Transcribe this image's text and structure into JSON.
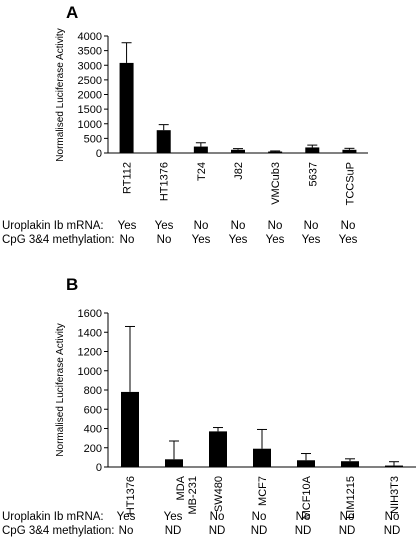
{
  "chart_data": [
    {
      "panel": "A",
      "type": "bar",
      "ylabel": "Normalised Luciferase Activity",
      "ylim": [
        0,
        4000
      ],
      "yticks": [
        0,
        500,
        1000,
        1500,
        2000,
        2500,
        3000,
        3500,
        4000
      ],
      "categories": [
        "RT112",
        "HT1376",
        "T24",
        "J82",
        "VMCub3",
        "5637",
        "TCCSuP"
      ],
      "values": [
        3080,
        780,
        220,
        110,
        50,
        190,
        110
      ],
      "errors": [
        690,
        190,
        130,
        40,
        20,
        80,
        50
      ],
      "grid": false,
      "rows": [
        {
          "label": "Uroplakin Ib mRNA:",
          "values": [
            "Yes",
            "Yes",
            "No",
            "No",
            "No",
            "No",
            "No"
          ]
        },
        {
          "label": "CpG 3&4 methylation:",
          "values": [
            "No",
            "No",
            "Yes",
            "Yes",
            "Yes",
            "Yes",
            "Yes"
          ]
        }
      ]
    },
    {
      "panel": "B",
      "type": "bar",
      "ylabel": "Normalised Luciferase Activity",
      "ylim": [
        0,
        1600
      ],
      "yticks": [
        0,
        200,
        400,
        600,
        800,
        1000,
        1200,
        1400,
        1600
      ],
      "categories": [
        "HT1376",
        "MDA\nMB-231",
        "SW480",
        "MCF7",
        "MCF10A",
        "LIM1215",
        "NIH3T3"
      ],
      "values": [
        780,
        80,
        370,
        190,
        70,
        60,
        15
      ],
      "errors": [
        680,
        190,
        40,
        200,
        70,
        25,
        40
      ],
      "grid": false,
      "rows": [
        {
          "label": "Uroplakin Ib mRNA:",
          "values": [
            "Yes",
            "Yes",
            "No",
            "No",
            "No",
            "No",
            "No"
          ]
        },
        {
          "label": "CpG 3&4 methylation:",
          "values": [
            "No",
            "ND",
            "ND",
            "ND",
            "ND",
            "ND",
            "ND"
          ]
        }
      ]
    }
  ]
}
